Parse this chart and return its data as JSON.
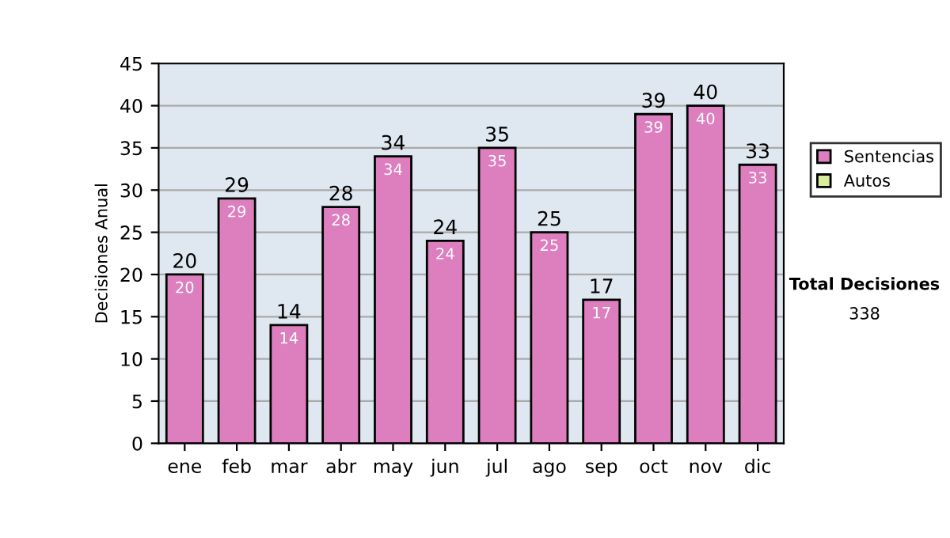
{
  "chart_data": {
    "type": "bar",
    "ylabel": "Decisiones Anual",
    "categories": [
      "ene",
      "feb",
      "mar",
      "abr",
      "may",
      "jun",
      "jul",
      "ago",
      "sep",
      "oct",
      "nov",
      "dic"
    ],
    "series": [
      {
        "name": "Sentencias",
        "color": "#dd7fbf",
        "values": [
          20,
          29,
          14,
          28,
          34,
          24,
          35,
          25,
          17,
          39,
          40,
          33
        ],
        "value_labels": [
          "20",
          "29",
          "14",
          "28",
          "34",
          "24",
          "35",
          "25",
          "17",
          "39",
          "40",
          "33"
        ]
      },
      {
        "name": "Autos",
        "color": "#d8ec9c",
        "values": [
          null,
          null,
          null,
          null,
          null,
          null,
          null,
          null,
          null,
          null,
          null,
          null
        ]
      }
    ],
    "stacked": true,
    "totals": [
      "20",
      "29",
      "14",
      "28",
      "34",
      "24",
      "35",
      "25",
      "17",
      "39",
      "40",
      "33"
    ],
    "ylim": [
      0,
      45
    ],
    "yticks": [
      0,
      5,
      10,
      15,
      20,
      25,
      30,
      35,
      40,
      45
    ],
    "grid": "y",
    "legend": "right",
    "annotations": [
      "Total Decisiones",
      "338"
    ]
  }
}
